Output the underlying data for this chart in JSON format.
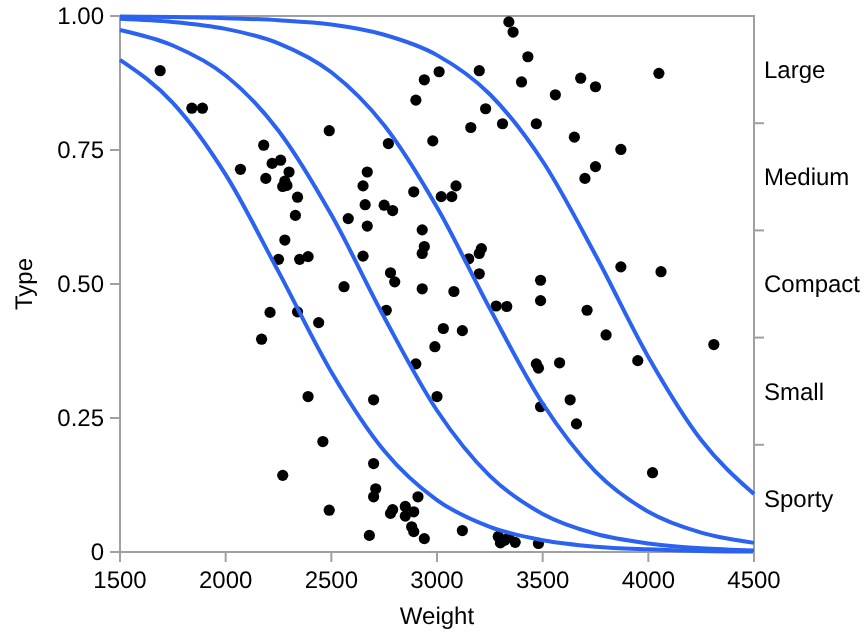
{
  "chart_data": {
    "type": "scatter",
    "xlabel": "Weight",
    "ylabel": "Type",
    "xlim": [
      1500,
      4500
    ],
    "xticks": [
      1500,
      2000,
      2500,
      3000,
      3500,
      4000,
      4500
    ],
    "ylim": [
      0,
      1
    ],
    "yticks": [
      0,
      {
        "value": 0.25,
        "label": "0.25"
      },
      {
        "value": 0.5,
        "label": "0.50"
      },
      {
        "value": 0.75,
        "label": "0.75"
      },
      {
        "value": 1,
        "label": "1.00"
      }
    ],
    "y2_categories": [
      "Large",
      "Medium",
      "Compact",
      "Small",
      "Sporty"
    ],
    "grid": false,
    "marker": "circle",
    "series": [
      {
        "color": "#000000",
        "x": [
          1690,
          1840,
          1890,
          2490,
          2180,
          2070,
          2220,
          2260,
          2190,
          2300,
          2280,
          2270,
          2290,
          2340,
          2330,
          2580,
          2280,
          2250,
          2350,
          2390,
          2560,
          2210,
          2340,
          2440,
          2170,
          2390,
          2460,
          2270,
          2490,
          3340,
          3360,
          3430,
          3400,
          3560,
          3470,
          3310,
          3230,
          3200,
          3160,
          3010,
          2940,
          2900,
          2980,
          2770,
          2670,
          2650,
          2660,
          2670,
          2750,
          2790,
          2890,
          3020,
          3070,
          3090,
          2930,
          2940,
          2930,
          2650,
          3150,
          3200,
          3210,
          3200,
          2780,
          2800,
          2930,
          3080,
          2760,
          3280,
          3330,
          3490,
          3490,
          3030,
          3120,
          2990,
          2900,
          3470,
          3480,
          3580,
          2700,
          3000,
          3490,
          2700,
          2710,
          2700,
          2790,
          2780,
          2850,
          2890,
          2850,
          2910,
          2880,
          2890,
          2940,
          2680,
          3120,
          3290,
          3320,
          3340,
          3370,
          3480,
          3300,
          3680,
          3750,
          4050,
          3650,
          3870,
          3750,
          3700,
          3870,
          4060,
          3710,
          3800,
          4310,
          3950,
          3630,
          3660,
          4020
        ],
        "values": [
          0.898,
          0.828,
          0.828,
          0.786,
          0.759,
          0.714,
          0.725,
          0.731,
          0.697,
          0.709,
          0.692,
          0.682,
          0.684,
          0.662,
          0.628,
          0.622,
          0.582,
          0.546,
          0.546,
          0.551,
          0.495,
          0.447,
          0.448,
          0.428,
          0.397,
          0.29,
          0.206,
          0.143,
          0.078,
          0.989,
          0.97,
          0.924,
          0.877,
          0.853,
          0.799,
          0.799,
          0.827,
          0.898,
          0.792,
          0.896,
          0.881,
          0.843,
          0.767,
          0.762,
          0.709,
          0.683,
          0.648,
          0.608,
          0.647,
          0.637,
          0.672,
          0.663,
          0.663,
          0.683,
          0.601,
          0.57,
          0.557,
          0.552,
          0.547,
          0.557,
          0.566,
          0.519,
          0.521,
          0.504,
          0.491,
          0.486,
          0.451,
          0.459,
          0.458,
          0.507,
          0.469,
          0.417,
          0.413,
          0.383,
          0.351,
          0.351,
          0.343,
          0.353,
          0.284,
          0.29,
          0.271,
          0.165,
          0.118,
          0.103,
          0.079,
          0.072,
          0.085,
          0.075,
          0.067,
          0.103,
          0.047,
          0.038,
          0.025,
          0.031,
          0.04,
          0.029,
          0.022,
          0.027,
          0.018,
          0.016,
          0.017,
          0.884,
          0.868,
          0.893,
          0.774,
          0.751,
          0.719,
          0.697,
          0.532,
          0.523,
          0.451,
          0.405,
          0.387,
          0.357,
          0.284,
          0.239,
          0.148
        ]
      },
      {
        "type": "line",
        "color": "#2b63f0",
        "marker": "none",
        "x": [
          1500,
          1750,
          2000,
          2250,
          2500,
          2750,
          3000,
          3250,
          3500,
          3750,
          4000,
          4250,
          4500
        ],
        "values": [
          0.918,
          0.838,
          0.704,
          0.523,
          0.336,
          0.189,
          0.097,
          0.047,
          0.022,
          0.01,
          0.005,
          0.002,
          0.001
        ]
      },
      {
        "type": "line",
        "color": "#2b63f0",
        "marker": "none",
        "x": [
          1500,
          1750,
          2000,
          2250,
          2500,
          2750,
          3000,
          3250,
          3500,
          3750,
          4000,
          4250,
          4500
        ],
        "values": [
          0.974,
          0.945,
          0.889,
          0.786,
          0.629,
          0.438,
          0.264,
          0.142,
          0.071,
          0.034,
          0.016,
          0.007,
          0.003
        ]
      },
      {
        "type": "line",
        "color": "#2b63f0",
        "marker": "none",
        "x": [
          1500,
          1750,
          2000,
          2250,
          2500,
          2750,
          3000,
          3250,
          3500,
          3750,
          4000,
          4250,
          4500
        ],
        "values": [
          0.995,
          0.989,
          0.976,
          0.949,
          0.895,
          0.796,
          0.643,
          0.454,
          0.277,
          0.15,
          0.075,
          0.036,
          0.017
        ]
      },
      {
        "type": "line",
        "color": "#2b63f0",
        "marker": "none",
        "x": [
          1500,
          1750,
          2000,
          2250,
          2500,
          2750,
          3000,
          3250,
          3500,
          3750,
          4000,
          4250,
          4500
        ],
        "values": [
          0.999,
          0.998,
          0.996,
          0.992,
          0.984,
          0.965,
          0.927,
          0.854,
          0.729,
          0.554,
          0.364,
          0.209,
          0.108
        ]
      }
    ]
  }
}
